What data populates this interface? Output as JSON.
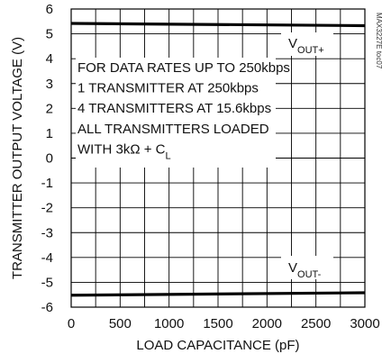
{
  "chart_data": {
    "type": "line",
    "title": "",
    "xlabel": "LOAD CAPACITANCE (pF)",
    "ylabel": "TRANSMITTER OUTPUT VOLTAGE (V)",
    "xlim": [
      0,
      3000
    ],
    "ylim": [
      -6,
      6
    ],
    "x_ticks": [
      0,
      500,
      1000,
      1500,
      2000,
      2500,
      3000
    ],
    "y_ticks": [
      6,
      5,
      4,
      3,
      2,
      1,
      0,
      -1,
      -2,
      -3,
      -4,
      -5,
      -6
    ],
    "x_tick_labels": [
      "0",
      "500",
      "1000",
      "1500",
      "2000",
      "2500",
      "3000"
    ],
    "y_tick_labels": [
      "6",
      "5",
      "4",
      "3",
      "2",
      "1",
      "0",
      "-1",
      "-2",
      "-3",
      "-4",
      "-5",
      "-6"
    ],
    "grid": true,
    "series": [
      {
        "name": "VOUT+",
        "x": [
          0,
          3000
        ],
        "y": [
          5.42,
          5.33
        ]
      },
      {
        "name": "VOUT-",
        "x": [
          0,
          3000
        ],
        "y": [
          -5.52,
          -5.42
        ]
      }
    ],
    "series_labels": [
      {
        "main": "V",
        "sub": "OUT+"
      },
      {
        "main": "V",
        "sub": "OUT-"
      }
    ],
    "annotation_lines": [
      "FOR DATA RATES UP TO 250kbps",
      "1 TRANSMITTER AT 250kbps",
      "4 TRANSMITTERS AT 15.6kbps",
      "ALL TRANSMITTERS LOADED"
    ],
    "annotation_last": {
      "prefix": "WITH 3kΩ + C",
      "sub": "L"
    },
    "watermark": "MAX3227E toc07"
  }
}
